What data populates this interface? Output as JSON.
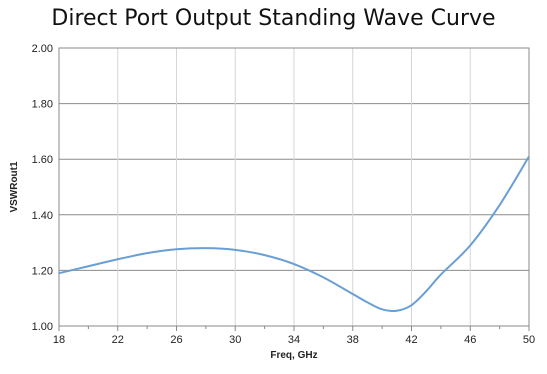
{
  "chart_data": {
    "type": "line",
    "title": "Direct Port Output Standing Wave Curve",
    "xlabel": "Freq, GHz",
    "ylabel": "VSWRout1",
    "xlim": [
      18,
      50
    ],
    "ylim": [
      1.0,
      2.0
    ],
    "x_ticks": [
      "18",
      "22",
      "26",
      "30",
      "34",
      "38",
      "42",
      "46",
      "50"
    ],
    "y_ticks": [
      "1.00",
      "1.20",
      "1.40",
      "1.60",
      "1.80",
      "2.00"
    ],
    "grid": true,
    "legend": "none",
    "line_color": "#6a9fd4",
    "series": [
      {
        "x": [
          18,
          20,
          22,
          24,
          26,
          28,
          30,
          32,
          34,
          36,
          38,
          39,
          40,
          41,
          42,
          43,
          44,
          46,
          48,
          50
        ],
        "y": [
          1.19,
          1.215,
          1.24,
          1.262,
          1.276,
          1.28,
          1.274,
          1.255,
          1.223,
          1.175,
          1.115,
          1.085,
          1.06,
          1.055,
          1.075,
          1.125,
          1.185,
          1.29,
          1.435,
          1.61
        ]
      }
    ]
  }
}
